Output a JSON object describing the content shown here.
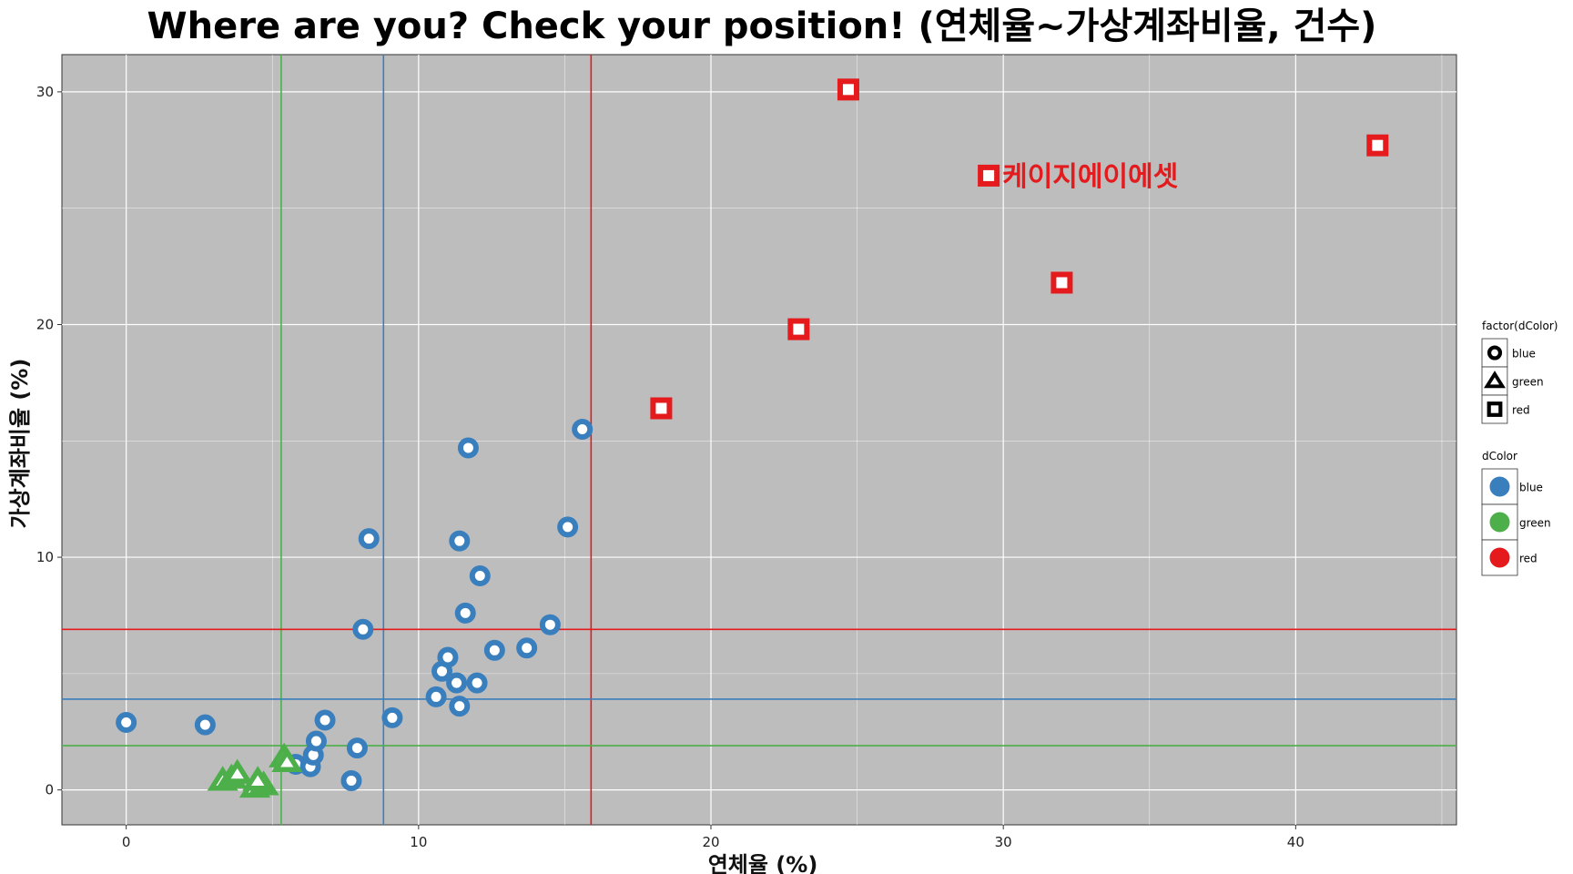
{
  "chart_data": {
    "type": "scatter",
    "title": "Where are you?  Check your position!  (연체율~가상계좌비율, 건수)",
    "xlabel": "연체율 (%)",
    "ylabel": "가상계좌비율 (%)",
    "xlim": [
      -2.2,
      45.5
    ],
    "ylim": [
      -1.5,
      31.6
    ],
    "xticks": [
      0,
      10,
      20,
      30,
      40
    ],
    "yticks": [
      0,
      10,
      20,
      30
    ],
    "xticks_minor": [
      5,
      15,
      25,
      35,
      45
    ],
    "yticks_minor": [
      5,
      15,
      25
    ],
    "grid": true,
    "panel_background": "#bdbdbd",
    "reference_lines": {
      "vertical": [
        {
          "x": 5.3,
          "color": "green"
        },
        {
          "x": 8.8,
          "color": "blue"
        },
        {
          "x": 15.9,
          "color": "red"
        }
      ],
      "horizontal": [
        {
          "y": 1.9,
          "color": "green"
        },
        {
          "y": 3.9,
          "color": "blue"
        },
        {
          "y": 6.9,
          "color": "red"
        }
      ]
    },
    "series": [
      {
        "name": "blue",
        "shape": "circle",
        "points": [
          [
            0.0,
            2.9
          ],
          [
            2.7,
            2.8
          ],
          [
            5.8,
            1.1
          ],
          [
            6.3,
            1.0
          ],
          [
            6.4,
            1.5
          ],
          [
            6.5,
            2.1
          ],
          [
            6.8,
            3.0
          ],
          [
            7.7,
            0.4
          ],
          [
            7.9,
            1.8
          ],
          [
            8.1,
            6.9
          ],
          [
            8.3,
            10.8
          ],
          [
            9.1,
            3.1
          ],
          [
            10.6,
            4.0
          ],
          [
            10.8,
            5.1
          ],
          [
            11.0,
            5.7
          ],
          [
            11.3,
            4.6
          ],
          [
            11.4,
            3.6
          ],
          [
            11.4,
            10.7
          ],
          [
            11.6,
            7.6
          ],
          [
            11.7,
            14.7
          ],
          [
            12.0,
            4.6
          ],
          [
            12.1,
            9.2
          ],
          [
            12.6,
            6.0
          ],
          [
            13.7,
            6.1
          ],
          [
            14.5,
            7.1
          ],
          [
            15.1,
            11.3
          ],
          [
            15.6,
            15.5
          ]
        ]
      },
      {
        "name": "green",
        "shape": "triangle",
        "points": [
          [
            3.3,
            0.4
          ],
          [
            3.6,
            0.5
          ],
          [
            3.8,
            0.7
          ],
          [
            4.4,
            0.1
          ],
          [
            4.7,
            0.2
          ],
          [
            4.5,
            0.4
          ],
          [
            5.4,
            1.4
          ],
          [
            5.5,
            1.2
          ]
        ]
      },
      {
        "name": "red",
        "shape": "square",
        "points": [
          [
            18.3,
            16.4
          ],
          [
            23.0,
            19.8
          ],
          [
            24.7,
            30.1
          ],
          [
            29.5,
            26.4
          ],
          [
            32.0,
            21.8
          ],
          [
            42.8,
            27.7
          ]
        ]
      }
    ],
    "annotation": {
      "text": "케이지에이에셋",
      "x": 29.5,
      "y": 26.4,
      "color": "red"
    },
    "legends": [
      {
        "title": "factor(dColor)",
        "kind": "shape",
        "entries": [
          {
            "label": "blue",
            "shape": "circle"
          },
          {
            "label": "green",
            "shape": "triangle"
          },
          {
            "label": "red",
            "shape": "square"
          }
        ]
      },
      {
        "title": "dColor",
        "kind": "color",
        "entries": [
          {
            "label": "blue",
            "color": "blue"
          },
          {
            "label": "green",
            "color": "green"
          },
          {
            "label": "red",
            "color": "red"
          }
        ]
      }
    ],
    "legend_position": "right"
  },
  "colors": {
    "blue": "#3a7fbd",
    "green": "#4daf4a",
    "red": "#e41a1c",
    "grid": "#ffffff",
    "panel_border": "#333333"
  }
}
